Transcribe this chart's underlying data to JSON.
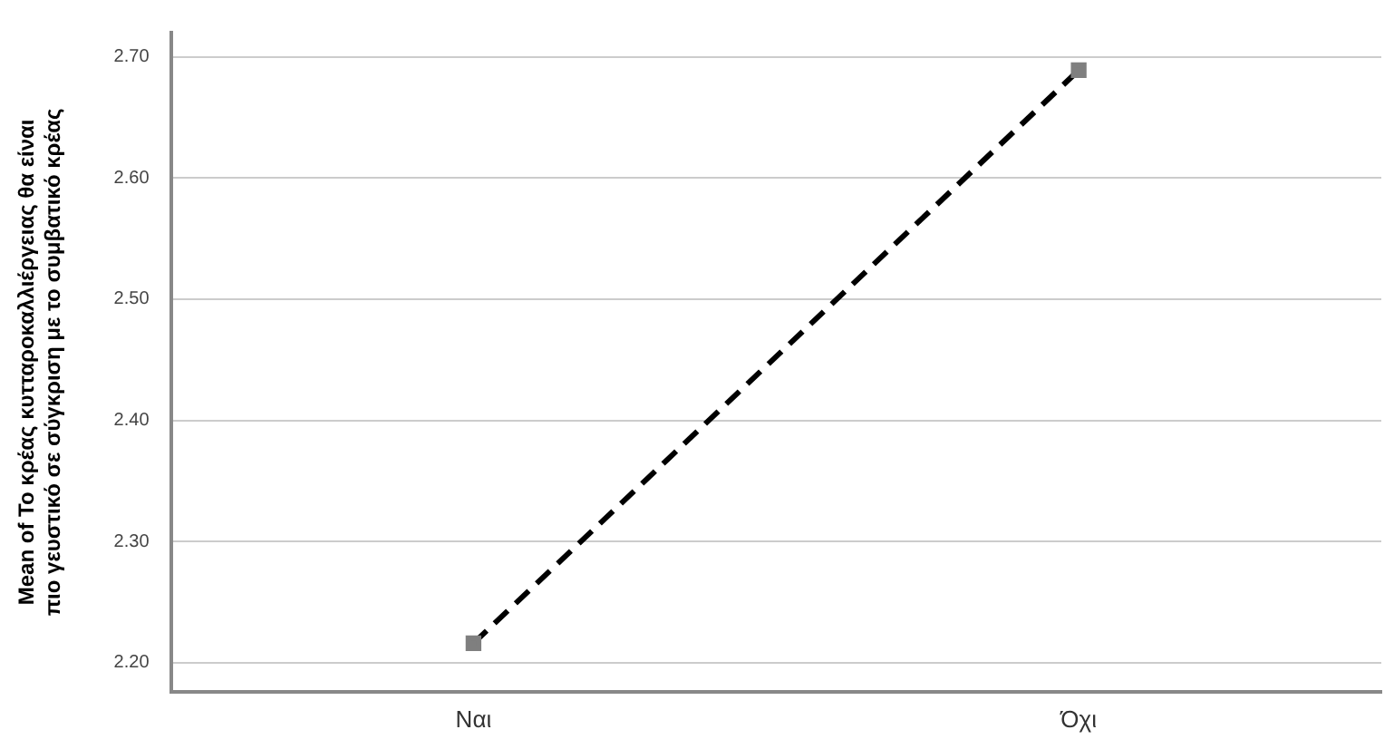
{
  "chart_data": {
    "type": "line",
    "ylabel": "Mean of Το κρέας κυτταροκαλλιέργειας θα είναι πιο γευστικό σε σύγκριση με το συμβατικό κρέας",
    "categories": [
      "Ναι",
      "Όχι"
    ],
    "series": [
      {
        "color": "#000000",
        "values": [
          2.216,
          2.689
        ]
      }
    ],
    "ylim": [
      2.176,
      2.72
    ],
    "yticks": [
      {
        "value": 2.2,
        "label": "2.20"
      },
      {
        "value": 2.3,
        "label": "2.30"
      },
      {
        "value": 2.4,
        "label": "2.40"
      },
      {
        "value": 2.5,
        "label": "2.50"
      },
      {
        "value": 2.6,
        "label": "2.60"
      },
      {
        "value": 2.7,
        "label": "2.70"
      }
    ],
    "grid": "y",
    "legend": false,
    "marker": "square",
    "line_style": "dashed"
  }
}
